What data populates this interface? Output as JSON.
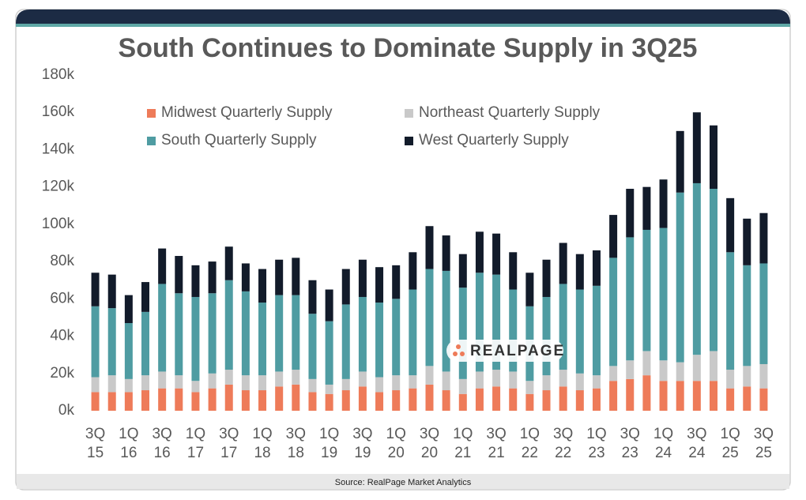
{
  "chart_data": {
    "type": "stacked_bar",
    "title": "South Continues to Dominate Supply in 3Q25",
    "source": "Source: RealPage Market Analytics",
    "watermark": "REALPAGE",
    "categories": [
      "3Q 15",
      null,
      "1Q 16",
      null,
      "3Q 16",
      null,
      "1Q 17",
      null,
      "3Q 17",
      null,
      "1Q 18",
      null,
      "3Q 18",
      null,
      "1Q 19",
      null,
      "3Q 19",
      null,
      "1Q 20",
      null,
      "3Q 20",
      null,
      "1Q 21",
      null,
      "3Q 21",
      null,
      "1Q 22",
      null,
      "3Q 22",
      null,
      "1Q 23",
      null,
      "3Q 23",
      null,
      "1Q 24",
      null,
      "3Q 24",
      null,
      "1Q 25",
      null,
      "3Q 25"
    ],
    "series": [
      {
        "name": "Midwest Quarterly Supply",
        "color": "#ee7b59",
        "values": [
          10,
          10,
          10,
          11,
          12,
          12,
          10,
          12,
          14,
          11,
          11,
          13,
          14,
          10,
          9,
          11,
          13,
          10,
          11,
          12,
          14,
          11,
          9,
          12,
          13,
          12,
          9,
          11,
          13,
          11,
          12,
          16,
          17,
          19,
          16,
          16,
          16,
          16,
          12,
          13,
          12
        ]
      },
      {
        "name": "Northeast Quarterly Supply",
        "color": "#c9c9c9",
        "values": [
          8,
          9,
          7,
          8,
          9,
          7,
          6,
          8,
          8,
          8,
          8,
          8,
          8,
          7,
          5,
          6,
          8,
          8,
          8,
          7,
          10,
          10,
          8,
          9,
          9,
          9,
          7,
          8,
          9,
          9,
          7,
          8,
          10,
          13,
          11,
          10,
          14,
          16,
          10,
          11,
          13
        ]
      },
      {
        "name": "South Quarterly Supply",
        "color": "#4f9ca2",
        "values": [
          38,
          36,
          30,
          34,
          47,
          44,
          45,
          43,
          48,
          45,
          39,
          41,
          40,
          35,
          34,
          40,
          40,
          40,
          41,
          46,
          52,
          54,
          49,
          53,
          51,
          44,
          40,
          42,
          46,
          45,
          48,
          58,
          66,
          65,
          71,
          91,
          92,
          87,
          63,
          54,
          54
        ]
      },
      {
        "name": "West Quarterly Supply",
        "color": "#121b2a",
        "values": [
          18,
          18,
          15,
          16,
          19,
          20,
          17,
          17,
          18,
          15,
          18,
          19,
          20,
          18,
          17,
          19,
          20,
          19,
          18,
          20,
          23,
          19,
          18,
          22,
          22,
          20,
          18,
          20,
          22,
          19,
          19,
          23,
          26,
          23,
          26,
          33,
          38,
          34,
          29,
          25,
          27
        ]
      }
    ],
    "ylim": [
      0,
      180
    ],
    "yticks": [
      {
        "value": 0,
        "label": "0k"
      },
      {
        "value": 20,
        "label": "20k"
      },
      {
        "value": 40,
        "label": "40k"
      },
      {
        "value": 60,
        "label": "60k"
      },
      {
        "value": 80,
        "label": "80k"
      },
      {
        "value": 100,
        "label": "100k"
      },
      {
        "value": 120,
        "label": "120k"
      },
      {
        "value": 140,
        "label": "140k"
      },
      {
        "value": 160,
        "label": "160k"
      },
      {
        "value": 180,
        "label": "180k"
      }
    ],
    "grid": false
  }
}
